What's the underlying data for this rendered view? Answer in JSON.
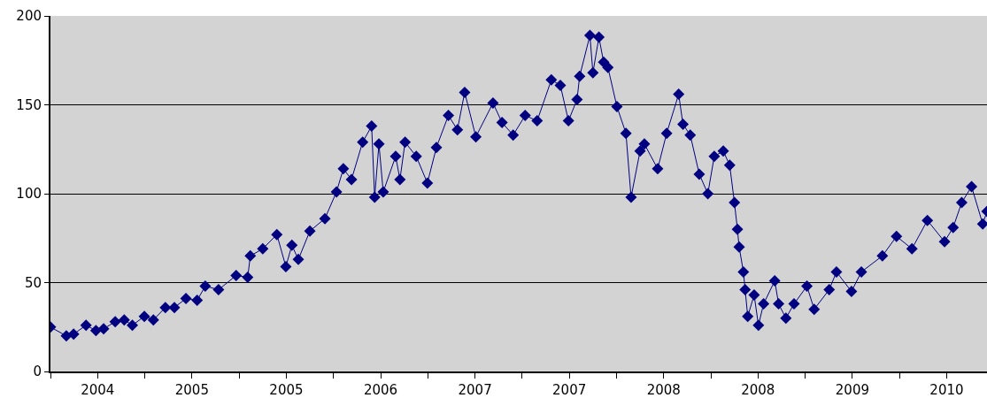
{
  "chart_data": {
    "type": "line",
    "marker": "diamond",
    "grid": "y",
    "x": [
      "2004-06-01",
      "2004-07-08",
      "2004-07-25",
      "2004-08-23",
      "2004-09-15",
      "2004-10-03",
      "2004-10-30",
      "2004-11-20",
      "2004-12-09",
      "2005-01-06",
      "2005-01-27",
      "2005-02-24",
      "2005-03-17",
      "2005-04-13",
      "2005-05-09",
      "2005-05-28",
      "2005-06-28",
      "2005-08-08",
      "2005-09-04",
      "2005-09-10",
      "2005-10-09",
      "2005-11-11",
      "2005-12-02",
      "2005-12-16",
      "2005-12-31",
      "2006-01-27",
      "2006-03-03",
      "2006-03-30",
      "2006-04-15",
      "2006-05-04",
      "2006-05-30",
      "2006-06-20",
      "2006-06-27",
      "2006-07-07",
      "2006-07-17",
      "2006-08-15",
      "2006-08-25",
      "2006-09-06",
      "2006-10-02",
      "2006-10-28",
      "2006-11-18",
      "2006-12-16",
      "2007-01-06",
      "2007-01-23",
      "2007-02-18",
      "2007-03-30",
      "2007-04-20",
      "2007-05-16",
      "2007-06-13",
      "2007-07-11",
      "2007-08-13",
      "2007-09-03",
      "2007-09-22",
      "2007-10-12",
      "2007-10-18",
      "2007-11-11",
      "2007-11-18",
      "2007-12-02",
      "2007-12-13",
      "2007-12-23",
      "2008-01-13",
      "2008-02-03",
      "2008-02-15",
      "2008-03-07",
      "2008-03-17",
      "2008-04-17",
      "2008-05-08",
      "2008-06-05",
      "2008-06-15",
      "2008-07-02",
      "2008-07-23",
      "2008-08-12",
      "2008-08-27",
      "2008-09-17",
      "2008-10-02",
      "2008-10-13",
      "2008-10-20",
      "2008-10-24",
      "2008-11-03",
      "2008-11-07",
      "2008-11-13",
      "2008-11-28",
      "2008-12-08",
      "2008-12-20",
      "2009-01-15",
      "2009-01-24",
      "2009-02-10",
      "2009-03-01",
      "2009-03-31",
      "2009-04-17",
      "2009-05-22",
      "2009-06-08",
      "2009-07-13",
      "2009-08-05",
      "2009-09-23",
      "2009-10-26",
      "2009-12-01",
      "2010-01-06",
      "2010-02-15",
      "2010-03-07",
      "2010-03-27",
      "2010-04-19",
      "2010-05-15",
      "2010-05-25"
    ],
    "series": [
      {
        "color": "#000080",
        "values": [
          25,
          20,
          21,
          26,
          23,
          24,
          28,
          29,
          26,
          31,
          29,
          36,
          36,
          41,
          40,
          48,
          46,
          54,
          53,
          65,
          69,
          77,
          59,
          71,
          63,
          79,
          86,
          101,
          114,
          108,
          129,
          138,
          98,
          128,
          101,
          121,
          108,
          129,
          121,
          106,
          126,
          144,
          136,
          157,
          132,
          151,
          140,
          133,
          144,
          141,
          164,
          161,
          141,
          153,
          166,
          189,
          168,
          188,
          174,
          171,
          149,
          134,
          98,
          124,
          128,
          114,
          134,
          156,
          139,
          133,
          111,
          100,
          121,
          124,
          116,
          95,
          80,
          70,
          56,
          46,
          31,
          43,
          26,
          38,
          51,
          38,
          30,
          38,
          48,
          35,
          46,
          56,
          45,
          56,
          65,
          76,
          69,
          85,
          73,
          81,
          95,
          104,
          83,
          90
        ]
      }
    ],
    "xlim": [
      "2004-06-01",
      "2010-05-25"
    ],
    "xticks": [
      {
        "value": "2004-06-01",
        "label": null
      },
      {
        "value": "2004-09-19",
        "label": "2004"
      },
      {
        "value": "2005-01-07",
        "label": null
      },
      {
        "value": "2005-04-27",
        "label": "2005"
      },
      {
        "value": "2005-08-15",
        "label": null
      },
      {
        "value": "2005-12-03",
        "label": "2005"
      },
      {
        "value": "2006-03-23",
        "label": null
      },
      {
        "value": "2006-07-11",
        "label": "2006"
      },
      {
        "value": "2006-10-29",
        "label": null
      },
      {
        "value": "2007-02-16",
        "label": "2007"
      },
      {
        "value": "2007-06-06",
        "label": null
      },
      {
        "value": "2007-09-24",
        "label": "2007"
      },
      {
        "value": "2008-01-12",
        "label": null
      },
      {
        "value": "2008-05-01",
        "label": "2008"
      },
      {
        "value": "2008-08-19",
        "label": null
      },
      {
        "value": "2008-12-07",
        "label": "2008"
      },
      {
        "value": "2009-03-27",
        "label": null
      },
      {
        "value": "2009-07-15",
        "label": "2009"
      },
      {
        "value": "2009-11-02",
        "label": null
      },
      {
        "value": "2010-02-20",
        "label": "2010"
      }
    ],
    "ylim": [
      0,
      200
    ],
    "yticks": [
      0,
      50,
      100,
      150,
      200
    ]
  }
}
